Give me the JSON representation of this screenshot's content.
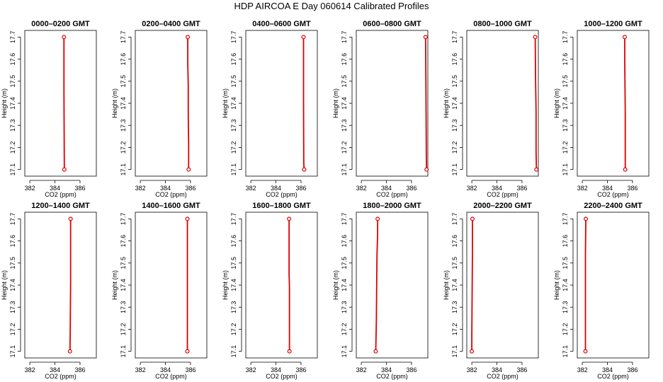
{
  "title": "HDP  AIRCOA E  Day 060614  Calibrated Profiles",
  "chart_data": {
    "type": "line",
    "panels": [
      {
        "title": "0000–0200 GMT",
        "points": [
          {
            "height": 17.1,
            "co2": 384.75
          },
          {
            "height": 17.46,
            "co2": 384.72
          },
          {
            "height": 17.7,
            "co2": 384.72
          }
        ]
      },
      {
        "title": "0200–0400 GMT",
        "points": [
          {
            "height": 17.1,
            "co2": 385.85
          },
          {
            "height": 17.22,
            "co2": 385.85
          },
          {
            "height": 17.34,
            "co2": 385.82
          },
          {
            "height": 17.48,
            "co2": 385.82
          },
          {
            "height": 17.58,
            "co2": 385.78
          },
          {
            "height": 17.7,
            "co2": 385.78
          }
        ]
      },
      {
        "title": "0400–0600 GMT",
        "points": [
          {
            "height": 17.1,
            "co2": 386.25
          },
          {
            "height": 17.13,
            "co2": 386.22
          },
          {
            "height": 17.42,
            "co2": 386.2
          },
          {
            "height": 17.7,
            "co2": 386.2
          }
        ]
      },
      {
        "title": "0600–0800 GMT",
        "points": [
          {
            "height": 17.1,
            "co2": 387.2
          },
          {
            "height": 17.16,
            "co2": 387.18
          },
          {
            "height": 17.46,
            "co2": 387.15
          },
          {
            "height": 17.7,
            "co2": 387.12
          }
        ]
      },
      {
        "title": "0800–1000 GMT",
        "points": [
          {
            "height": 17.1,
            "co2": 387.15
          },
          {
            "height": 17.18,
            "co2": 387.12
          },
          {
            "height": 17.36,
            "co2": 387.12
          },
          {
            "height": 17.51,
            "co2": 387.08
          },
          {
            "height": 17.7,
            "co2": 387.05
          }
        ]
      },
      {
        "title": "1000–1200 GMT",
        "points": [
          {
            "height": 17.1,
            "co2": 385.42
          },
          {
            "height": 17.37,
            "co2": 385.42
          },
          {
            "height": 17.59,
            "co2": 385.38
          },
          {
            "height": 17.7,
            "co2": 385.38
          }
        ]
      },
      {
        "title": "1200–1400 GMT",
        "points": [
          {
            "height": 17.1,
            "co2": 385.2
          },
          {
            "height": 17.18,
            "co2": 385.22
          },
          {
            "height": 17.41,
            "co2": 385.25
          },
          {
            "height": 17.7,
            "co2": 385.25
          }
        ]
      },
      {
        "title": "1400–1600 GMT",
        "points": [
          {
            "height": 17.1,
            "co2": 385.75
          },
          {
            "height": 17.7,
            "co2": 385.75
          }
        ]
      },
      {
        "title": "1600–1800 GMT",
        "points": [
          {
            "height": 17.1,
            "co2": 385.08
          },
          {
            "height": 17.39,
            "co2": 385.08
          },
          {
            "height": 17.45,
            "co2": 385.05
          },
          {
            "height": 17.7,
            "co2": 385.05
          }
        ]
      },
      {
        "title": "1800–2000 GMT",
        "points": [
          {
            "height": 17.1,
            "co2": 383.15
          },
          {
            "height": 17.24,
            "co2": 383.2
          },
          {
            "height": 17.38,
            "co2": 383.22
          },
          {
            "height": 17.54,
            "co2": 383.25
          },
          {
            "height": 17.63,
            "co2": 383.3
          },
          {
            "height": 17.7,
            "co2": 383.3
          }
        ]
      },
      {
        "title": "2000–2200 GMT",
        "points": [
          {
            "height": 17.1,
            "co2": 382.0
          },
          {
            "height": 17.17,
            "co2": 382.0
          },
          {
            "height": 17.55,
            "co2": 382.05
          },
          {
            "height": 17.7,
            "co2": 382.05
          }
        ]
      },
      {
        "title": "2200–2400 GMT",
        "points": [
          {
            "height": 17.1,
            "co2": 382.25
          },
          {
            "height": 17.55,
            "co2": 382.25
          },
          {
            "height": 17.7,
            "co2": 382.28
          }
        ]
      }
    ],
    "xlabel": "CO2 (ppm)",
    "ylabel": "Height (m)",
    "xlim": [
      381.6,
      387.3
    ],
    "ylim": [
      17.07,
      17.73
    ],
    "x_ticks": [
      "382",
      "384",
      "386"
    ],
    "x_tick_values": [
      382,
      384,
      386
    ],
    "y_ticks": [
      "17.1",
      "17.2",
      "17.3",
      "17.4",
      "17.5",
      "17.6",
      "17.7"
    ],
    "y_tick_values": [
      17.1,
      17.2,
      17.3,
      17.4,
      17.5,
      17.6,
      17.7
    ],
    "line_color": "#dd0000",
    "marker_color": "#dd0000",
    "grid": false,
    "layout": "2 rows x 6 columns"
  }
}
